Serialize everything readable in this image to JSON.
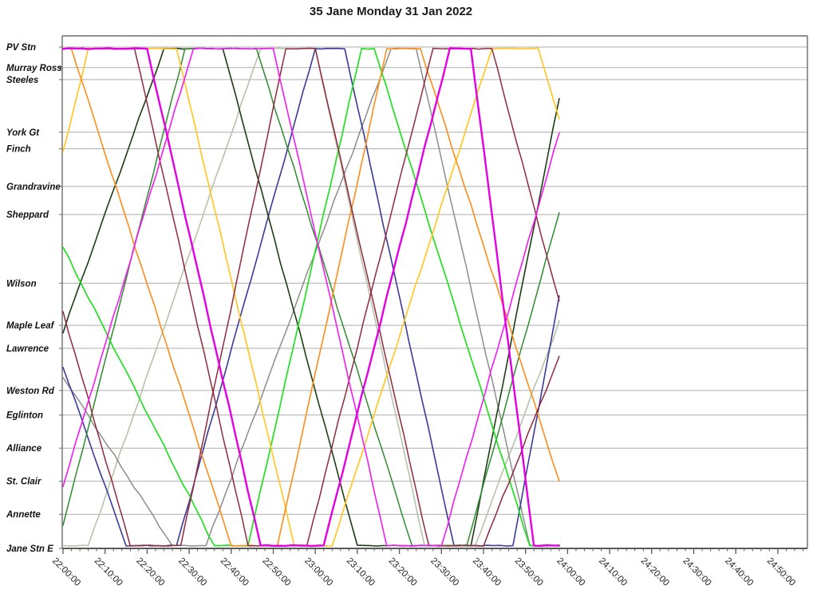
{
  "title": "35 Jane Monday 31 Jan 2022",
  "chart_data": {
    "type": "line",
    "subtype": "transit-time-distance-marey-diagram",
    "title": "35 Jane Monday 31 Jan 2022",
    "xlabel": "",
    "ylabel": "",
    "grid": "horizontal-station-lines",
    "legend": "none",
    "x_axis": {
      "start": "22:00:00",
      "end": "24:50:00",
      "major_tick_interval_min": 10,
      "minor_tick_interval_min": 2,
      "tick_labels": [
        "22:00:00",
        "22:10:00",
        "22:20:00",
        "22:30:00",
        "22:40:00",
        "22:50:00",
        "23:00:00",
        "23:10:00",
        "23:20:00",
        "23:30:00",
        "23:40:00",
        "23:50:00",
        "24:00:00",
        "24:10:00",
        "24:20:00",
        "24:30:00",
        "24:40:00",
        "24:50:00"
      ],
      "data_ends_at": "23:58:00"
    },
    "y_axis": {
      "description": "stations along route, top=north terminal, bottom=south terminal; pos = % of route distance from PV Stn",
      "stations": [
        {
          "name": "PV Stn",
          "pos": 0
        },
        {
          "name": "Murray Ross",
          "pos": 4.1
        },
        {
          "name": "Steeles",
          "pos": 6.5
        },
        {
          "name": "York Gt",
          "pos": 17.0
        },
        {
          "name": "Finch",
          "pos": 20.3
        },
        {
          "name": "Grandravine",
          "pos": 27.8
        },
        {
          "name": "Sheppard",
          "pos": 33.4
        },
        {
          "name": "Wilson",
          "pos": 47.1
        },
        {
          "name": "Maple Leaf",
          "pos": 55.5
        },
        {
          "name": "Lawrence",
          "pos": 60.1
        },
        {
          "name": "Weston Rd",
          "pos": 68.5
        },
        {
          "name": "Eglinton",
          "pos": 73.4
        },
        {
          "name": "Alliance",
          "pos": 80.0
        },
        {
          "name": "St. Clair",
          "pos": 86.6
        },
        {
          "name": "Annette",
          "pos": 93.2
        },
        {
          "name": "Jane Stn E",
          "pos": 100
        }
      ]
    },
    "series_point_format": "[minutes_after_22:00, route_pos_percent(0=PV Stn,100=Jane Stn E)]",
    "series": [
      {
        "name": "trip-sage",
        "color": "#B7C2AB",
        "width": 1.6,
        "points": [
          [
            0,
            100
          ],
          [
            6,
            100
          ],
          [
            47,
            0
          ],
          [
            60,
            0
          ],
          [
            86,
            100
          ],
          [
            98,
            100
          ],
          [
            118,
            55
          ]
        ]
      },
      {
        "name": "trip-gray",
        "color": "#8C8C8C",
        "width": 1.5,
        "points": [
          [
            0,
            66
          ],
          [
            26,
            100
          ],
          [
            34,
            100
          ],
          [
            78,
            0
          ],
          [
            84,
            0
          ],
          [
            111,
            100
          ],
          [
            118,
            100
          ]
        ]
      },
      {
        "name": "trip-navy",
        "color": "#3A3A99",
        "width": 1.6,
        "points": [
          [
            0,
            64
          ],
          [
            15,
            100
          ],
          [
            27,
            100
          ],
          [
            60,
            0
          ],
          [
            67,
            0
          ],
          [
            93,
            100
          ],
          [
            107,
            100
          ],
          [
            118,
            50
          ]
        ]
      },
      {
        "name": "trip-black-green",
        "color": "#1E3D14",
        "width": 1.6,
        "points": [
          [
            0,
            57
          ],
          [
            24,
            0
          ],
          [
            38,
            0
          ],
          [
            70,
            100
          ],
          [
            97,
            100
          ],
          [
            118,
            10
          ]
        ]
      },
      {
        "name": "trip-forest-green",
        "color": "#2E8B2E",
        "width": 1.5,
        "points": [
          [
            0,
            96
          ],
          [
            29,
            0
          ],
          [
            46,
            0
          ],
          [
            83,
            100
          ],
          [
            96,
            100
          ],
          [
            118,
            33
          ]
        ]
      },
      {
        "name": "trip-bright-green",
        "color": "#21DF21",
        "width": 1.7,
        "points": [
          [
            0,
            40
          ],
          [
            36,
            100
          ],
          [
            44,
            100
          ],
          [
            71,
            0
          ],
          [
            74,
            0
          ],
          [
            111,
            100
          ],
          [
            118,
            100
          ]
        ]
      },
      {
        "name": "trip-gold",
        "color": "#FFC828",
        "width": 1.7,
        "points": [
          [
            0,
            21
          ],
          [
            6,
            0
          ],
          [
            27,
            0
          ],
          [
            55,
            100
          ],
          [
            64,
            100
          ],
          [
            102,
            0
          ],
          [
            113,
            0
          ],
          [
            118,
            14
          ]
        ]
      },
      {
        "name": "trip-orange",
        "color": "#FF8C19",
        "width": 1.6,
        "points": [
          [
            0,
            0
          ],
          [
            2,
            0
          ],
          [
            40,
            100
          ],
          [
            51,
            100
          ],
          [
            77,
            0
          ],
          [
            85,
            0
          ],
          [
            118,
            87
          ]
        ]
      },
      {
        "name": "trip-maroon-1",
        "color": "#8E2A3E",
        "width": 1.5,
        "points": [
          [
            0,
            53
          ],
          [
            16,
            100
          ],
          [
            28,
            100
          ],
          [
            53,
            0
          ],
          [
            60,
            0
          ],
          [
            87,
            100
          ],
          [
            100,
            100
          ],
          [
            118,
            62
          ]
        ]
      },
      {
        "name": "trip-maroon-2",
        "color": "#8E2A3E",
        "width": 1.5,
        "points": [
          [
            0,
            0
          ],
          [
            17,
            0
          ],
          [
            44,
            100
          ],
          [
            58,
            100
          ],
          [
            88,
            0
          ],
          [
            102,
            0
          ],
          [
            118,
            51
          ]
        ]
      },
      {
        "name": "trip-magenta-2",
        "color": "#F21CF2",
        "width": 1.6,
        "points": [
          [
            0,
            88
          ],
          [
            31,
            0
          ],
          [
            50,
            0
          ],
          [
            77,
            100
          ],
          [
            90,
            100
          ],
          [
            118,
            17
          ]
        ]
      },
      {
        "name": "trip-magenta-1",
        "color": "#E300E3",
        "width": 2.4,
        "points": [
          [
            0,
            0
          ],
          [
            20,
            0
          ],
          [
            47,
            100
          ],
          [
            62,
            100
          ],
          [
            92,
            0
          ],
          [
            97,
            0
          ],
          [
            112,
            100
          ],
          [
            118,
            100
          ]
        ]
      }
    ],
    "colors": {
      "gridline": "#ADADAD",
      "axis": "#6B6B6B",
      "text": "#1A1A1A"
    }
  }
}
